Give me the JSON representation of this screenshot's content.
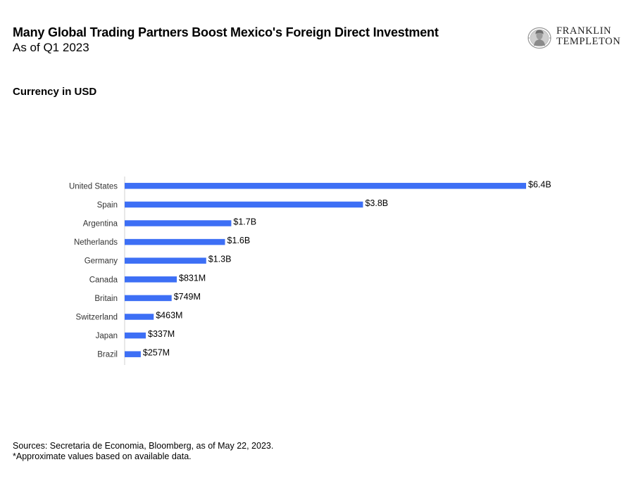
{
  "header": {
    "title": "Many Global Trading Partners Boost Mexico's Foreign Direct Investment",
    "subtitle": "As of Q1 2023",
    "currency_label": "Currency in USD"
  },
  "logo": {
    "line1": "FRANKLIN",
    "line2": "TEMPLETON",
    "icon": "franklin-portrait-icon"
  },
  "chart_data": {
    "type": "bar",
    "orientation": "horizontal",
    "categories": [
      "United States",
      "Spain",
      "Argentina",
      "Netherlands",
      "Germany",
      "Canada",
      "Britain",
      "Switzerland",
      "Japan",
      "Brazil"
    ],
    "values": [
      6.4,
      3.8,
      1.7,
      1.6,
      1.3,
      0.831,
      0.749,
      0.463,
      0.337,
      0.257
    ],
    "value_unit": "USD billions",
    "data_labels": [
      "$6.4B",
      "$3.8B",
      "$1.7B",
      "$1.6B",
      "$1.3B",
      "$831M",
      "$749M",
      "$463M",
      "$337M",
      "$257M"
    ],
    "bar_color": "#3d6ff5",
    "xlim": [
      0,
      6.4
    ],
    "grid": false,
    "legend": "none"
  },
  "footnotes": {
    "sources": "Sources: Secretaria de Economia, Bloomberg, as of May 22, 2023.",
    "note": "*Approximate values based on available data."
  }
}
